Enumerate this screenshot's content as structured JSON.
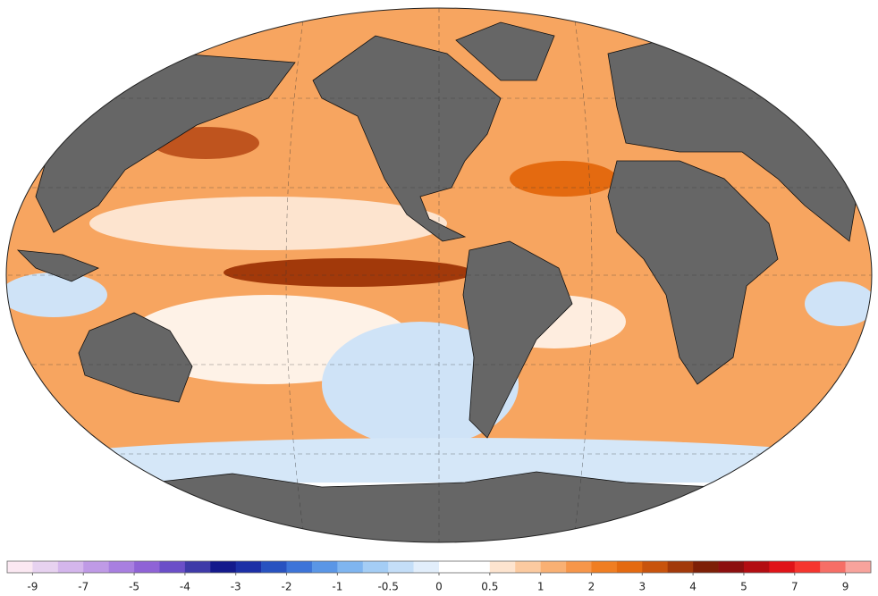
{
  "colorbar": {
    "colors": [
      "#fbe8f2",
      "#e7d2f0",
      "#d4b6ec",
      "#bf9ae6",
      "#a87fe0",
      "#8f63d6",
      "#6b4fc8",
      "#3e3aa8",
      "#141a8c",
      "#1c2fa6",
      "#2852c0",
      "#3d74d8",
      "#5a96e6",
      "#7fb5f0",
      "#a4cdf5",
      "#c4def8",
      "#e2eefb",
      "#ffffff",
      "#ffffff",
      "#fde4cf",
      "#fbcaa0",
      "#f9b073",
      "#f6964a",
      "#f07e22",
      "#e46a10",
      "#c8530c",
      "#a2390a",
      "#7d1f06",
      "#8c0f0f",
      "#b30d12",
      "#e01318",
      "#f5352e",
      "#f66e66",
      "#f8a39c"
    ],
    "ticks": [
      -9,
      -7,
      -5,
      -4,
      -3,
      -2,
      -1,
      -0.5,
      0,
      0.5,
      1,
      2,
      3,
      4,
      5,
      7,
      9
    ]
  }
}
